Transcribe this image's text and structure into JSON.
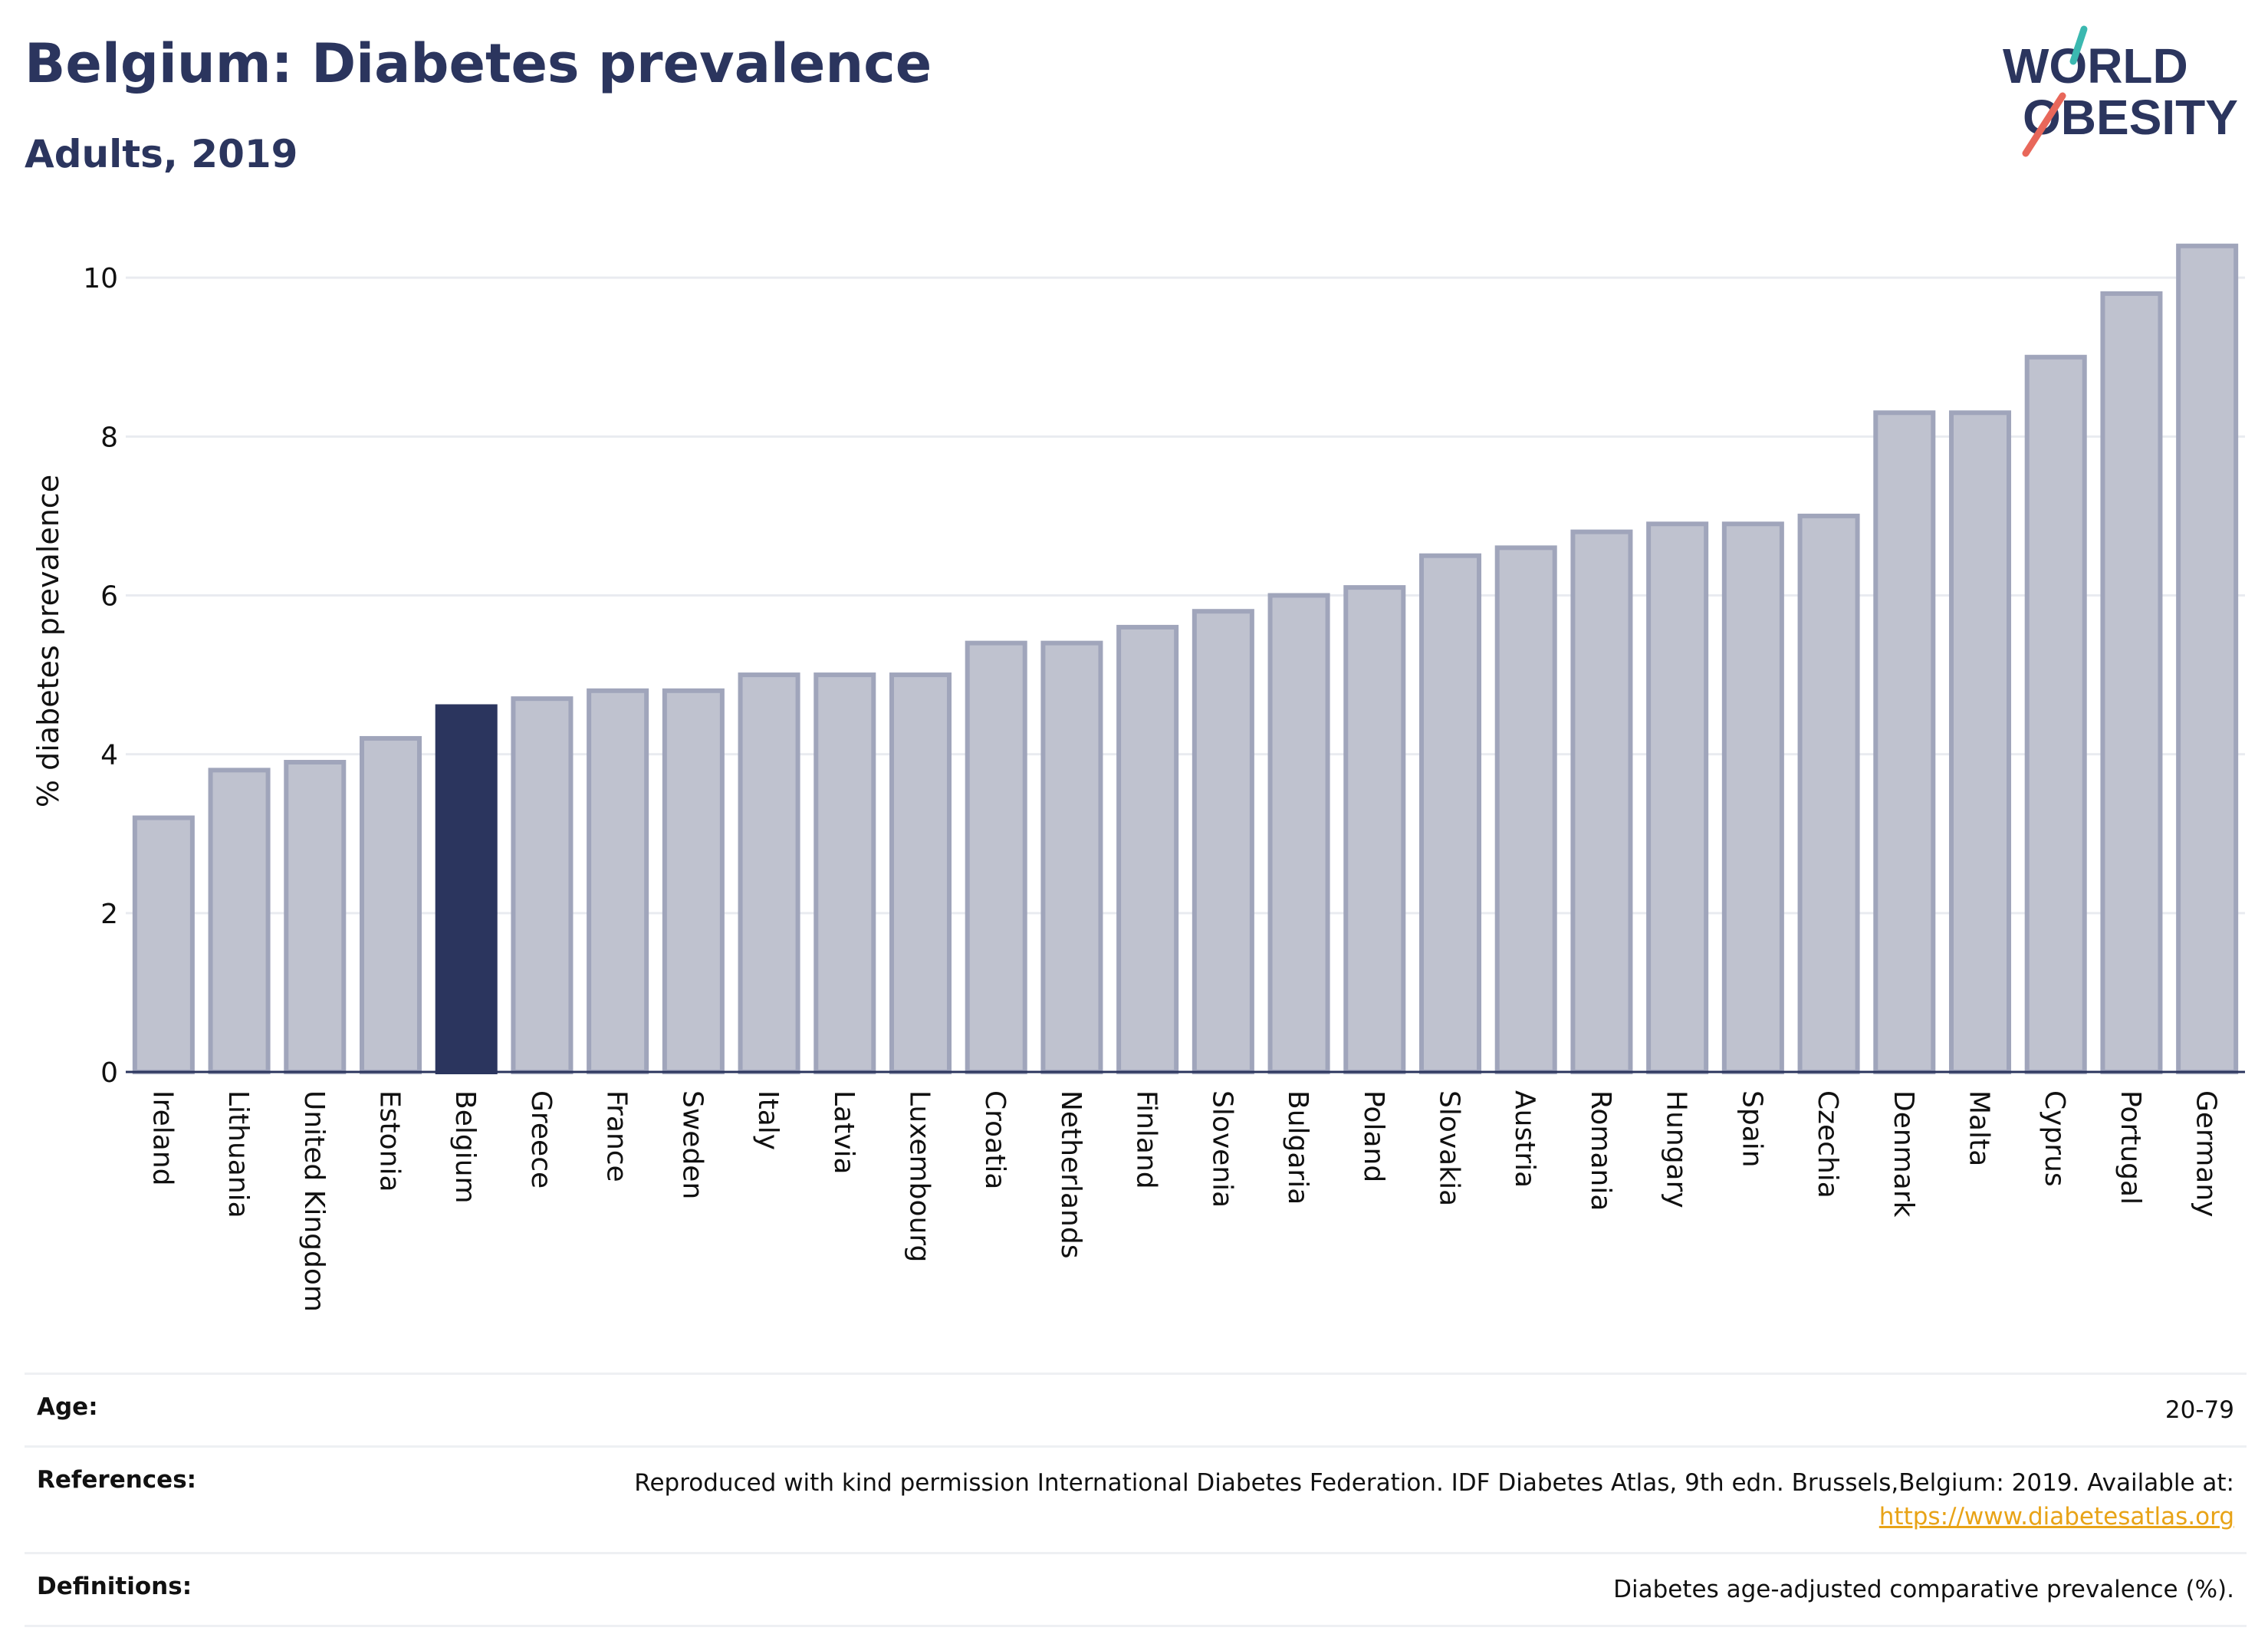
{
  "header": {
    "title": "Belgium: Diabetes prevalence",
    "subtitle": "Adults, 2019"
  },
  "logo": {
    "line1": "WORLD",
    "line2": "OBESITY"
  },
  "colors": {
    "highlight": "#2b355e",
    "bar_fill": "#bfc2cf",
    "bar_stroke": "#a0a5bb",
    "grid": "#e9ebf0",
    "logo_teal": "#3bb8b0",
    "logo_red": "#e8675a"
  },
  "chart_data": {
    "type": "bar",
    "ylabel": "% diabetes prevalence",
    "ylim": [
      0,
      10.6
    ],
    "yticks": [
      0,
      2,
      4,
      6,
      8,
      10
    ],
    "highlight": "Belgium",
    "categories": [
      "Ireland",
      "Lithuania",
      "United Kingdom",
      "Estonia",
      "Belgium",
      "Greece",
      "France",
      "Sweden",
      "Italy",
      "Latvia",
      "Luxembourg",
      "Croatia",
      "Netherlands",
      "Finland",
      "Slovenia",
      "Bulgaria",
      "Poland",
      "Slovakia",
      "Austria",
      "Romania",
      "Hungary",
      "Spain",
      "Czechia",
      "Denmark",
      "Malta",
      "Cyprus",
      "Portugal",
      "Germany"
    ],
    "values": [
      3.2,
      3.8,
      3.9,
      4.2,
      4.6,
      4.7,
      4.8,
      4.8,
      5.0,
      5.0,
      5.0,
      5.4,
      5.4,
      5.6,
      5.8,
      6.0,
      6.1,
      6.5,
      6.6,
      6.8,
      6.9,
      6.9,
      7.0,
      8.3,
      8.3,
      9.0,
      9.8,
      10.4
    ]
  },
  "info": {
    "age_label": "Age:",
    "age_value": "20-79",
    "references_label": "References:",
    "references_text": "Reproduced with kind permission International Diabetes Federation. IDF Diabetes Atlas, 9th edn. Brussels,Belgium: 2019. Available at:",
    "references_link": "https://www.diabetesatlas.org",
    "definitions_label": "Definitions:",
    "definitions_value": "Diabetes age-adjusted comparative prevalence (%)."
  }
}
